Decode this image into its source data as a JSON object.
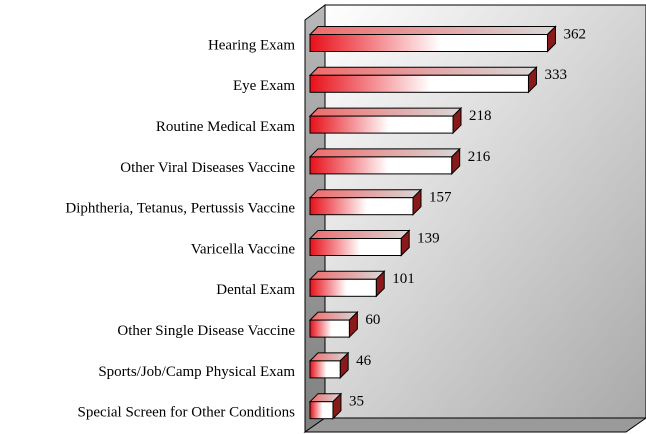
{
  "chart_data": {
    "type": "bar",
    "orientation": "horizontal",
    "categories": [
      "Hearing Exam",
      "Eye Exam",
      "Routine Medical Exam",
      "Other Viral Diseases Vaccine",
      "Diphtheria, Tetanus, Pertussis Vaccine",
      "Varicella Vaccine",
      "Dental Exam",
      "Other Single Disease Vaccine",
      "Sports/Job/Camp Physical Exam",
      "Special Screen for Other Conditions"
    ],
    "values": [
      362,
      333,
      218,
      216,
      157,
      139,
      101,
      60,
      46,
      35
    ],
    "color": "#e8101a",
    "xlim": [
      0,
      500
    ]
  }
}
